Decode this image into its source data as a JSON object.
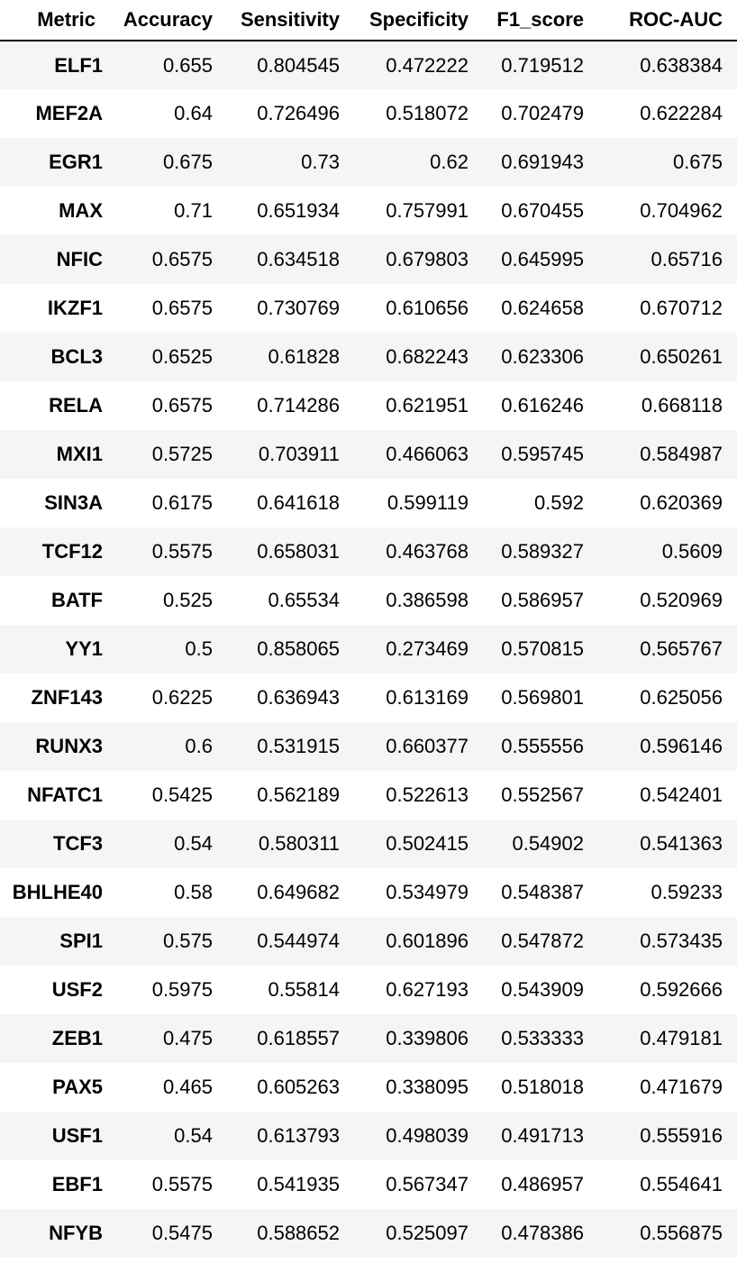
{
  "chart_data": {
    "type": "table",
    "columns": [
      "Metric",
      "Accuracy",
      "Sensitivity",
      "Specificity",
      "F1_score",
      "ROC-AUC"
    ],
    "rows": [
      [
        "ELF1",
        "0.655",
        "0.804545",
        "0.472222",
        "0.719512",
        "0.638384"
      ],
      [
        "MEF2A",
        "0.64",
        "0.726496",
        "0.518072",
        "0.702479",
        "0.622284"
      ],
      [
        "EGR1",
        "0.675",
        "0.73",
        "0.62",
        "0.691943",
        "0.675"
      ],
      [
        "MAX",
        "0.71",
        "0.651934",
        "0.757991",
        "0.670455",
        "0.704962"
      ],
      [
        "NFIC",
        "0.6575",
        "0.634518",
        "0.679803",
        "0.645995",
        "0.65716"
      ],
      [
        "IKZF1",
        "0.6575",
        "0.730769",
        "0.610656",
        "0.624658",
        "0.670712"
      ],
      [
        "BCL3",
        "0.6525",
        "0.61828",
        "0.682243",
        "0.623306",
        "0.650261"
      ],
      [
        "RELA",
        "0.6575",
        "0.714286",
        "0.621951",
        "0.616246",
        "0.668118"
      ],
      [
        "MXI1",
        "0.5725",
        "0.703911",
        "0.466063",
        "0.595745",
        "0.584987"
      ],
      [
        "SIN3A",
        "0.6175",
        "0.641618",
        "0.599119",
        "0.592",
        "0.620369"
      ],
      [
        "TCF12",
        "0.5575",
        "0.658031",
        "0.463768",
        "0.589327",
        "0.5609"
      ],
      [
        "BATF",
        "0.525",
        "0.65534",
        "0.386598",
        "0.586957",
        "0.520969"
      ],
      [
        "YY1",
        "0.5",
        "0.858065",
        "0.273469",
        "0.570815",
        "0.565767"
      ],
      [
        "ZNF143",
        "0.6225",
        "0.636943",
        "0.613169",
        "0.569801",
        "0.625056"
      ],
      [
        "RUNX3",
        "0.6",
        "0.531915",
        "0.660377",
        "0.555556",
        "0.596146"
      ],
      [
        "NFATC1",
        "0.5425",
        "0.562189",
        "0.522613",
        "0.552567",
        "0.542401"
      ],
      [
        "TCF3",
        "0.54",
        "0.580311",
        "0.502415",
        "0.54902",
        "0.541363"
      ],
      [
        "BHLHE40",
        "0.58",
        "0.649682",
        "0.534979",
        "0.548387",
        "0.59233"
      ],
      [
        "SPI1",
        "0.575",
        "0.544974",
        "0.601896",
        "0.547872",
        "0.573435"
      ],
      [
        "USF2",
        "0.5975",
        "0.55814",
        "0.627193",
        "0.543909",
        "0.592666"
      ],
      [
        "ZEB1",
        "0.475",
        "0.618557",
        "0.339806",
        "0.533333",
        "0.479181"
      ],
      [
        "PAX5",
        "0.465",
        "0.605263",
        "0.338095",
        "0.518018",
        "0.471679"
      ],
      [
        "USF1",
        "0.54",
        "0.613793",
        "0.498039",
        "0.491713",
        "0.555916"
      ],
      [
        "EBF1",
        "0.5575",
        "0.541935",
        "0.567347",
        "0.486957",
        "0.554641"
      ],
      [
        "NFYB",
        "0.5475",
        "0.588652",
        "0.525097",
        "0.478386",
        "0.556875"
      ]
    ],
    "row_stripe_color": "#f5f5f5",
    "header_rule_color": "#000000"
  }
}
